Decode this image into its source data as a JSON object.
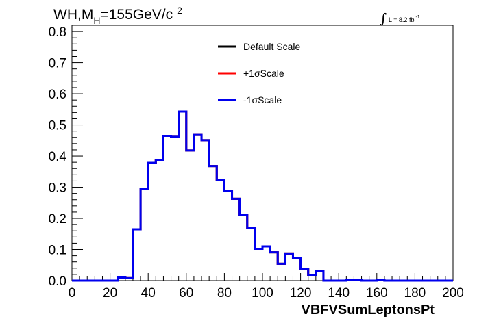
{
  "chart_data": {
    "type": "line",
    "title_main": "WH,M",
    "title_sub": "H",
    "title_rest": "=155GeV/c",
    "title_sup": "2",
    "lumi_prefix": "L = 8.2 fb",
    "lumi_sup": "-1",
    "xlabel": "VBFVSumLeptonsPt",
    "ylabel": "",
    "xlim": [
      0,
      200
    ],
    "ylim": [
      0,
      0.82
    ],
    "xticks": [
      0,
      20,
      40,
      60,
      80,
      100,
      120,
      140,
      160,
      180,
      200
    ],
    "xtick_labels": [
      "0",
      "20",
      "40",
      "60",
      "80",
      "100",
      "120",
      "140",
      "160",
      "180",
      "200"
    ],
    "yticks": [
      0,
      0.1,
      0.2,
      0.3,
      0.4,
      0.5,
      0.6,
      0.7,
      0.8
    ],
    "ytick_labels": [
      "0.0",
      "0.1",
      "0.2",
      "0.3",
      "0.4",
      "0.5",
      "0.6",
      "0.7",
      "0.8"
    ],
    "grid": false,
    "legend_position": "top-center",
    "bin_edges": [
      0,
      4,
      8,
      12,
      16,
      20,
      24,
      28,
      32,
      36,
      40,
      44,
      48,
      52,
      56,
      60,
      64,
      68,
      72,
      76,
      80,
      84,
      88,
      92,
      96,
      100,
      104,
      108,
      112,
      116,
      120,
      124,
      128,
      132,
      136,
      140,
      144,
      148,
      152,
      156,
      160,
      164,
      168,
      172,
      176,
      180,
      184,
      188,
      192,
      196,
      200
    ],
    "series": [
      {
        "name": "Default Scale",
        "color": "#000000",
        "values": [
          0,
          0,
          0,
          0,
          0,
          0,
          0.01,
          0.008,
          0.165,
          0.295,
          0.378,
          0.386,
          0.465,
          0.462,
          0.543,
          0.418,
          0.468,
          0.451,
          0.368,
          0.323,
          0.288,
          0.263,
          0.21,
          0.17,
          0.102,
          0.11,
          0.091,
          0.054,
          0.087,
          0.073,
          0.037,
          0.017,
          0.032,
          0,
          0,
          0,
          0.003,
          0.003,
          0,
          0,
          0.003,
          0,
          0,
          0,
          0,
          0,
          0,
          0,
          0,
          0
        ]
      },
      {
        "name": "+1σScale",
        "color": "#ff0000",
        "values": [
          0,
          0,
          0,
          0,
          0,
          0,
          0.01,
          0.008,
          0.165,
          0.295,
          0.378,
          0.386,
          0.465,
          0.462,
          0.543,
          0.418,
          0.468,
          0.451,
          0.368,
          0.323,
          0.288,
          0.263,
          0.21,
          0.17,
          0.102,
          0.11,
          0.091,
          0.054,
          0.087,
          0.073,
          0.037,
          0.017,
          0.032,
          0,
          0,
          0,
          0.003,
          0.003,
          0,
          0,
          0.003,
          0,
          0,
          0,
          0,
          0,
          0,
          0,
          0,
          0
        ]
      },
      {
        "name": "-1σScale",
        "color": "#0000ee",
        "values": [
          0,
          0,
          0,
          0,
          0,
          0,
          0.01,
          0.008,
          0.165,
          0.295,
          0.378,
          0.386,
          0.465,
          0.462,
          0.543,
          0.418,
          0.468,
          0.451,
          0.368,
          0.323,
          0.288,
          0.263,
          0.21,
          0.17,
          0.102,
          0.11,
          0.091,
          0.054,
          0.087,
          0.073,
          0.037,
          0.017,
          0.032,
          0,
          0,
          0,
          0.003,
          0.003,
          0,
          0,
          0.003,
          0,
          0,
          0,
          0,
          0,
          0,
          0,
          0,
          0
        ]
      }
    ]
  }
}
